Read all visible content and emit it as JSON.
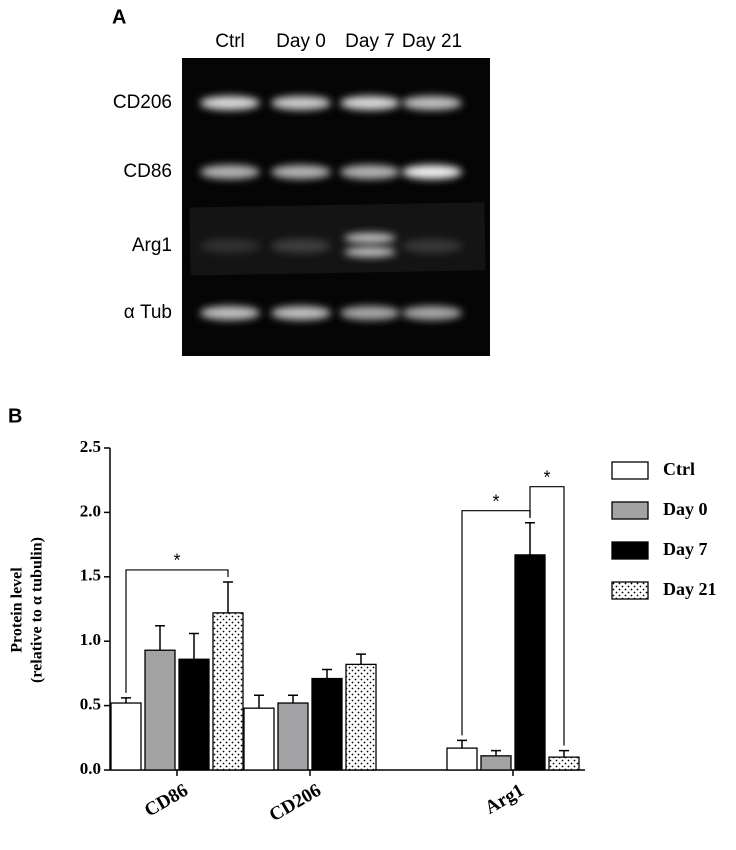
{
  "blot": {
    "panel_label": "A",
    "lanes": [
      "Ctrl",
      "Day 0",
      "Day 7",
      "Day 21"
    ],
    "rows": [
      "CD206",
      "CD86",
      "Arg1",
      "α Tub"
    ]
  },
  "chart_data": {
    "type": "bar",
    "panel_label": "B",
    "y_label": [
      "Protein level",
      "(relative to α tubulin)"
    ],
    "categories": [
      "CD86",
      "CD206",
      "Arg1"
    ],
    "series": [
      {
        "name": "Ctrl",
        "color": "#ffffff",
        "values": [
          0.52,
          0.48,
          0.17
        ],
        "errors": [
          0.04,
          0.1,
          0.06
        ]
      },
      {
        "name": "Day 0",
        "color": "#a3a3a6",
        "values": [
          0.93,
          0.52,
          0.11
        ],
        "errors": [
          0.19,
          0.06,
          0.04
        ]
      },
      {
        "name": "Day 7",
        "color": "#000000",
        "values": [
          0.86,
          0.71,
          1.67
        ],
        "errors": [
          0.2,
          0.07,
          0.25
        ]
      },
      {
        "name": "Day 21",
        "color": "#ffffff",
        "pattern": "dots",
        "values": [
          1.22,
          0.82,
          0.1
        ],
        "errors": [
          0.24,
          0.08,
          0.05
        ]
      }
    ],
    "ylim": [
      0,
      2.5
    ],
    "yticks": [
      {
        "value": 0,
        "label": "0.0"
      },
      {
        "value": 0.5,
        "label": "0.5"
      },
      {
        "value": 1,
        "label": "1.0"
      },
      {
        "value": 1.5,
        "label": "1.5"
      },
      {
        "value": 2,
        "label": "2.0"
      },
      {
        "value": 2.5,
        "label": "2.5"
      }
    ],
    "significance": [
      {
        "category": "CD86",
        "between": [
          "Ctrl",
          "Day 21"
        ],
        "label": "*"
      },
      {
        "category": "Arg1",
        "between": [
          "Ctrl",
          "Day 7"
        ],
        "label": "*"
      },
      {
        "category": "Arg1",
        "between": [
          "Day 7",
          "Day 21"
        ],
        "label": "*"
      }
    ],
    "legend": "right"
  }
}
